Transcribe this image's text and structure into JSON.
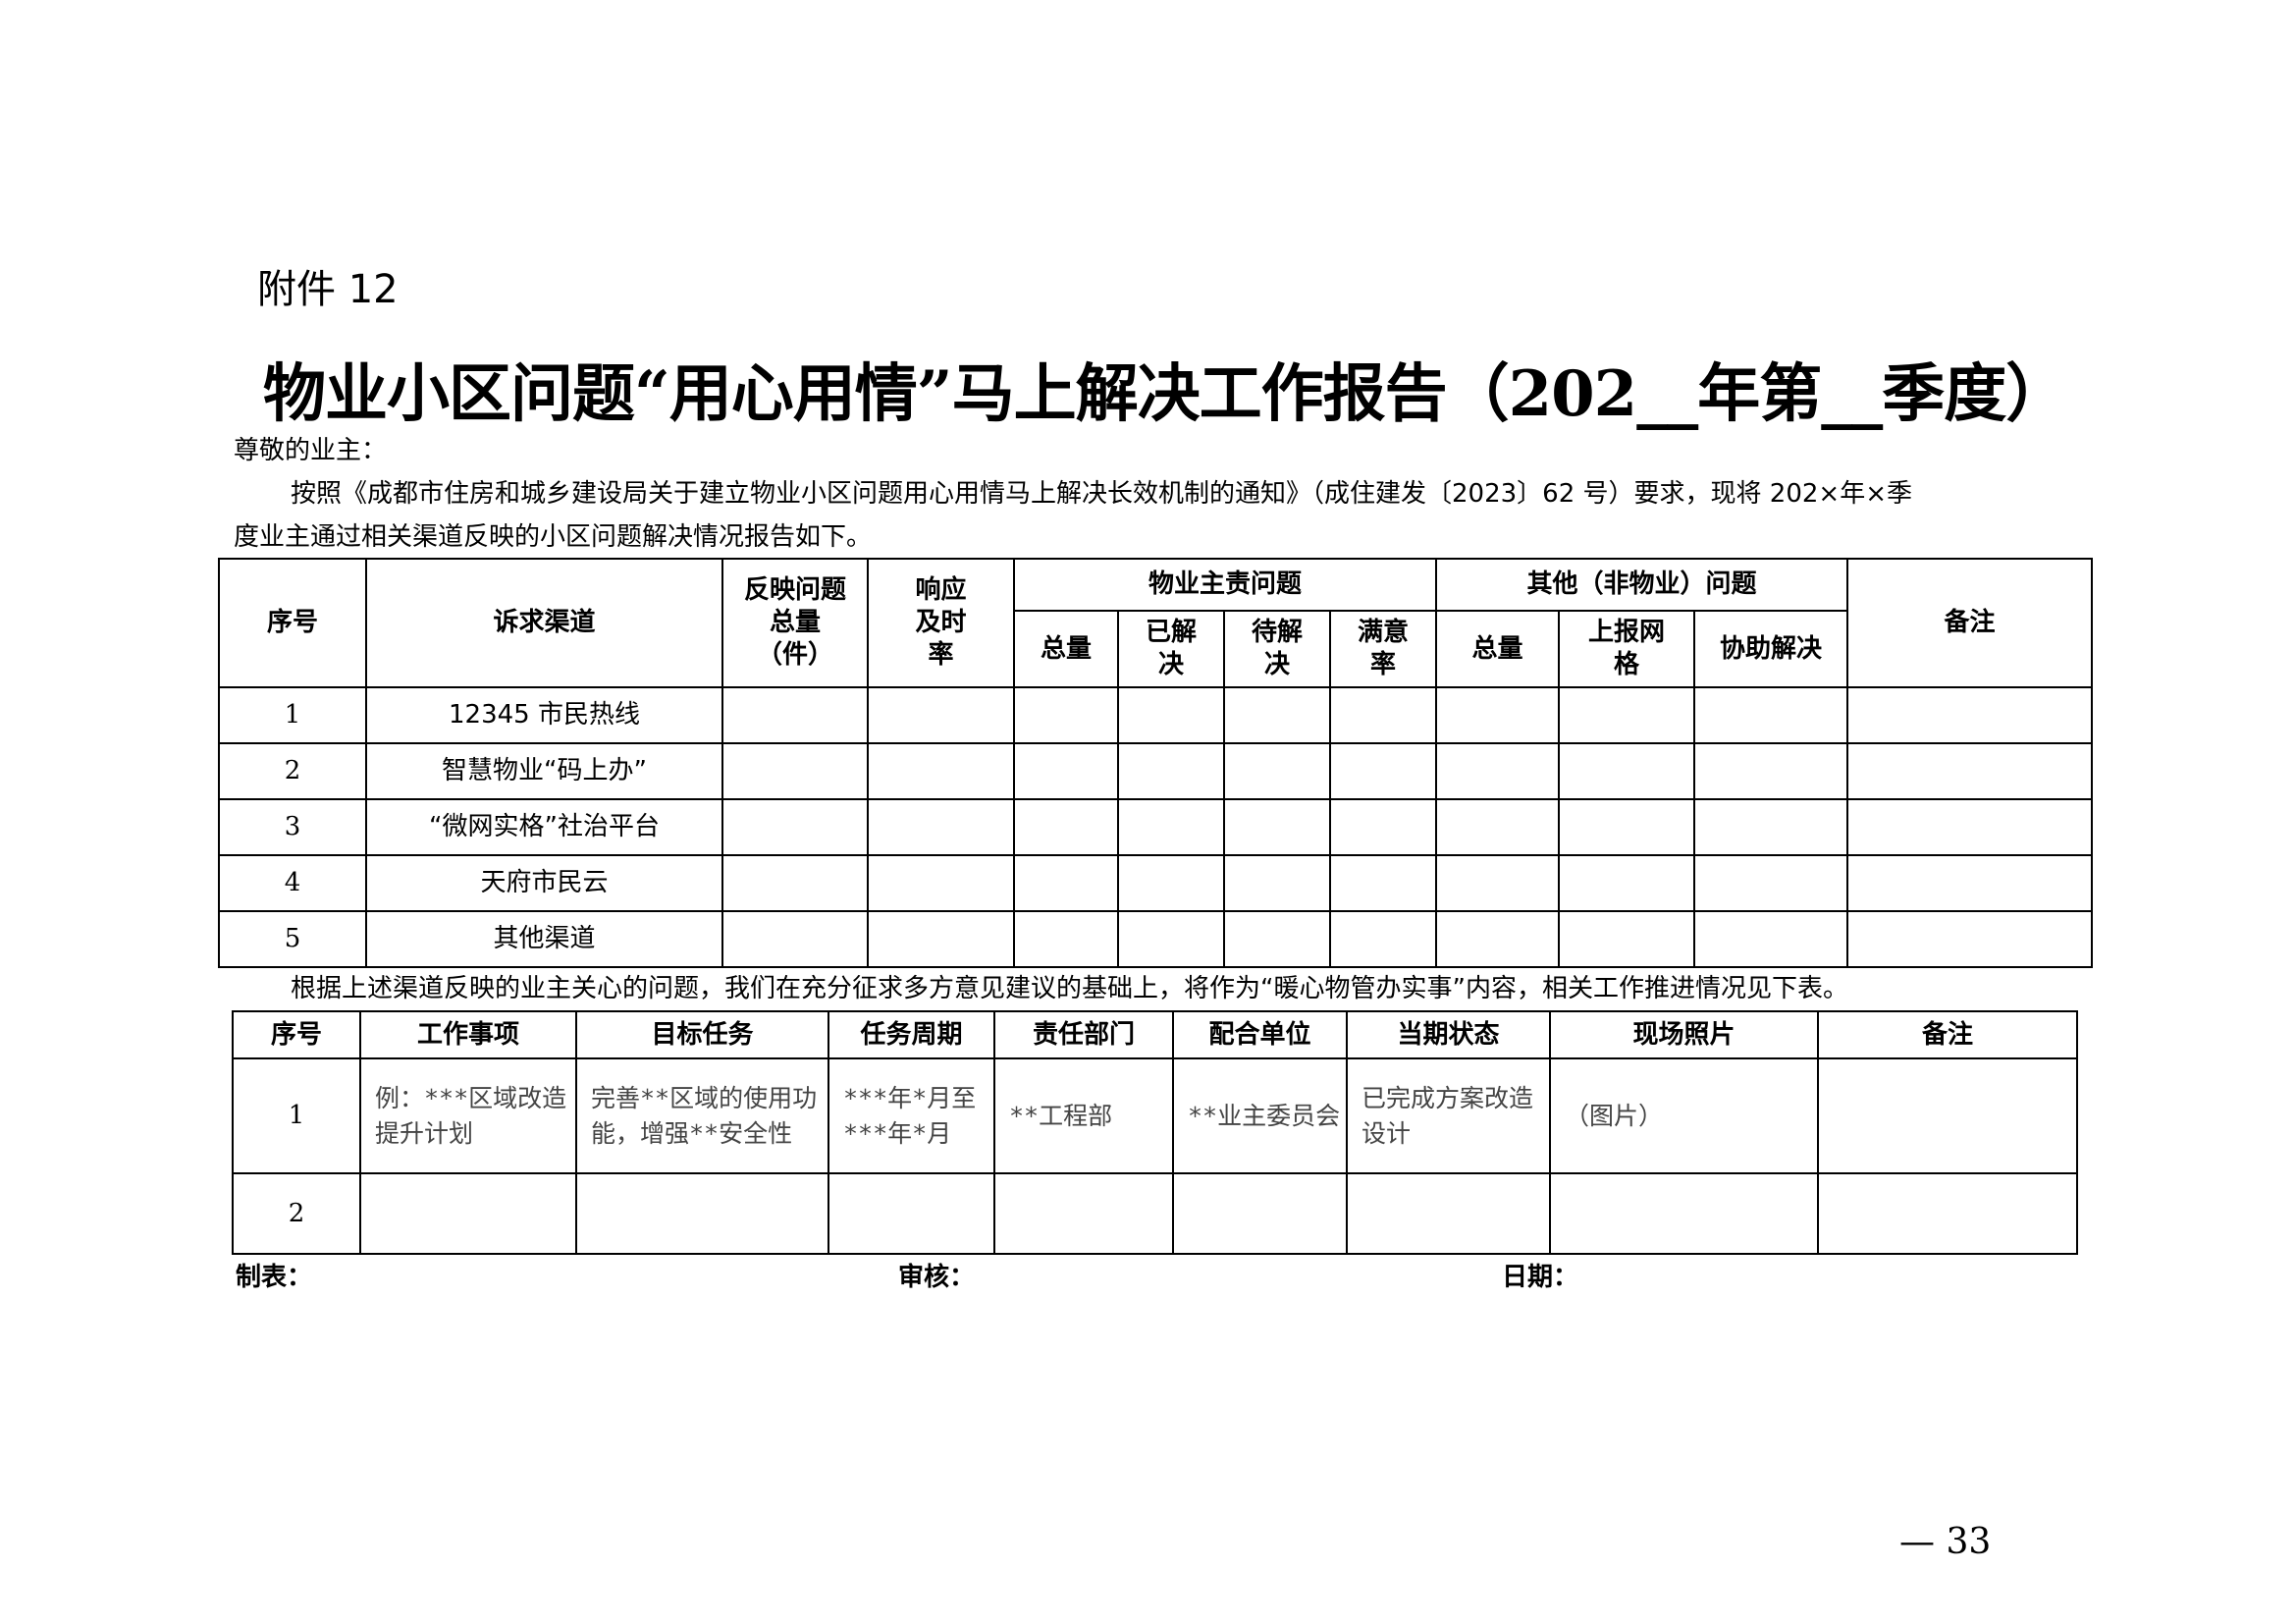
{
  "attachment_label": "附件 12",
  "title": "物业小区问题“用心用情”马上解决工作报告（202__年第__季度）",
  "greeting": "尊敬的业主：",
  "paragraph_line1": "按照《成都市住房和城乡建设局关于建立物业小区问题用心用情马上解决长效机制的通知》（成住建发〔2023〕62 号）要求，现将 202×年×季",
  "paragraph_line2": "度业主通过相关渠道反映的小区问题解决情况报告如下。",
  "table1": {
    "headers": {
      "index": "序号",
      "channel": "诉求渠道",
      "total_reported": "反映问题总量（件）",
      "response_rate": "响应及时率",
      "property_group": "物业主责问题",
      "other_group": "其他（非物业）问题",
      "remarks": "备注",
      "property_sub": [
        "总量",
        "已解决",
        "待解决",
        "满意率"
      ],
      "other_sub": [
        "总量",
        "上报网格",
        "协助解决"
      ]
    },
    "rows": [
      {
        "index": "1",
        "channel": "12345 市民热线"
      },
      {
        "index": "2",
        "channel": "智慧物业“码上办”"
      },
      {
        "index": "3",
        "channel": "“微网实格”社治平台"
      },
      {
        "index": "4",
        "channel": "天府市民云"
      },
      {
        "index": "5",
        "channel": "其他渠道"
      }
    ]
  },
  "sentence": "根据上述渠道反映的业主关心的问题，我们在充分征求多方意见建议的基础上，将作为“暖心物管办实事”内容，相关工作推进情况见下表。",
  "table2": {
    "headers": [
      "序号",
      "工作事项",
      "目标任务",
      "任务周期",
      "责任部门",
      "配合单位",
      "当期状态",
      "现场照片",
      "备注"
    ],
    "rows": [
      [
        "1",
        "例：***区域改造提升计划",
        "完善**区域的使用功能，增强**安全性",
        "***年*月至***年*月",
        "**工程部",
        "**业主委员会",
        "已完成方案改造设计",
        "（图片）",
        ""
      ],
      [
        "2",
        "",
        "",
        "",
        "",
        "",
        "",
        "",
        ""
      ]
    ]
  },
  "footer": {
    "prepared_by": "制表：",
    "reviewed_by": "审核：",
    "date": "日期："
  },
  "page_number": "— 33"
}
